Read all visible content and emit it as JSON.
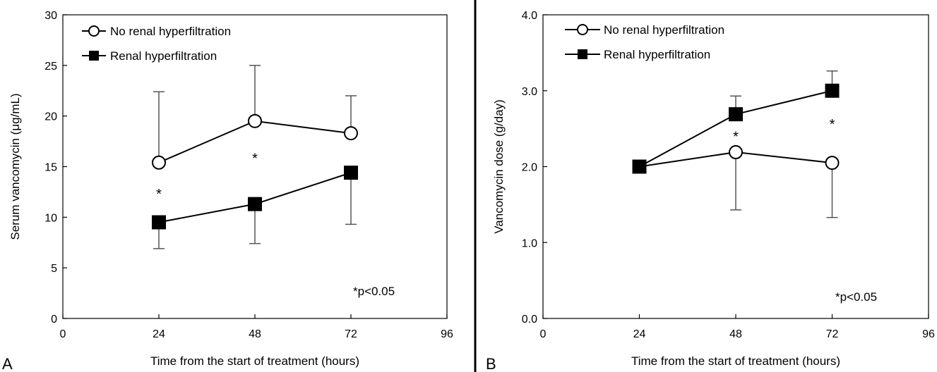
{
  "chart_data": [
    {
      "type": "line",
      "panel_label": "A",
      "title": "",
      "xlabel": "Time from the start of treatment (hours)",
      "ylabel": "Serum vancomycin (μg/mL)",
      "xlim": [
        0,
        96
      ],
      "ylim": [
        0,
        30
      ],
      "xticks": [
        0,
        24,
        48,
        72,
        96
      ],
      "yticks": [
        0,
        5,
        10,
        15,
        20,
        25,
        30
      ],
      "ytick_labels": [
        "0",
        "5",
        "10",
        "15",
        "20",
        "25",
        "30"
      ],
      "grid": false,
      "legend_position": "top-left",
      "series": [
        {
          "name": "No renal hyperfiltration",
          "marker": "open-circle",
          "x": [
            24,
            48,
            72
          ],
          "y": [
            15.4,
            19.5,
            18.3
          ],
          "error_upper": [
            22.4,
            25.0,
            22.0
          ],
          "error_lower": null
        },
        {
          "name": "Renal hyperfiltration",
          "marker": "filled-square",
          "x": [
            24,
            48,
            72
          ],
          "y": [
            9.5,
            11.3,
            14.4
          ],
          "error_upper": null,
          "error_lower": [
            6.9,
            7.4,
            9.3
          ]
        }
      ],
      "significance": [
        {
          "x": 24,
          "y": 12.4,
          "label": "*"
        },
        {
          "x": 48,
          "y": 15.9,
          "label": "*"
        }
      ],
      "annotation": "*p<0.05"
    },
    {
      "type": "line",
      "panel_label": "B",
      "title": "",
      "xlabel": "Time from the start of treatment (hours)",
      "ylabel": "Vancomycin dose (g/day)",
      "xlim": [
        0,
        96
      ],
      "ylim": [
        0,
        4
      ],
      "xticks": [
        0,
        24,
        48,
        72,
        96
      ],
      "yticks": [
        0,
        1,
        2,
        3,
        4
      ],
      "ytick_labels": [
        "0.0",
        "1.0",
        "2.0",
        "3.0",
        "4.0"
      ],
      "grid": false,
      "legend_position": "top-left",
      "series": [
        {
          "name": "No renal hyperfiltration",
          "marker": "open-circle",
          "x": [
            24,
            48,
            72
          ],
          "y": [
            2.0,
            2.19,
            2.05
          ],
          "error_upper": null,
          "error_lower": [
            2.0,
            1.43,
            1.33
          ]
        },
        {
          "name": "Renal hyperfiltration",
          "marker": "filled-square",
          "x": [
            24,
            48,
            72
          ],
          "y": [
            2.0,
            2.69,
            3.0
          ],
          "error_upper": [
            2.0,
            2.93,
            3.26
          ],
          "error_lower": null
        }
      ],
      "significance": [
        {
          "x": 48,
          "y": 2.41,
          "label": "*"
        },
        {
          "x": 72,
          "y": 2.57,
          "label": "*"
        }
      ],
      "annotation": "*p<0.05"
    }
  ]
}
